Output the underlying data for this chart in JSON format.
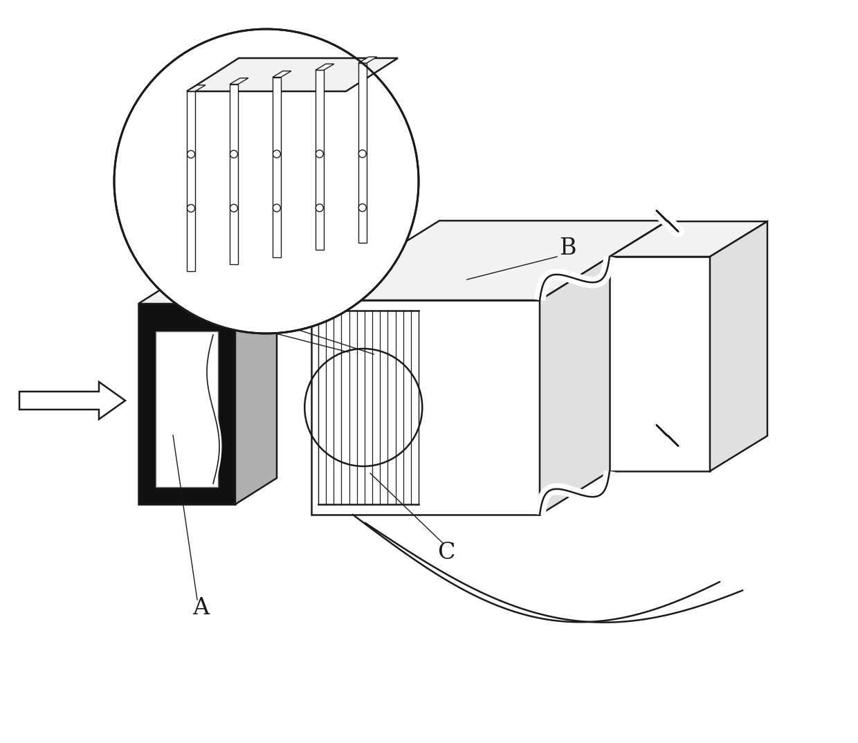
{
  "bg_color": "#ffffff",
  "line_color": "#1a1a1a",
  "black_fill": "#111111",
  "light_gray": "#f2f2f2",
  "med_gray": "#e0e0e0",
  "label_A": "A",
  "label_B": "B",
  "label_C": "C",
  "label_fontsize": 24,
  "lw_main": 1.8,
  "lw_thin": 1.0,
  "lw_probe": 0.9
}
